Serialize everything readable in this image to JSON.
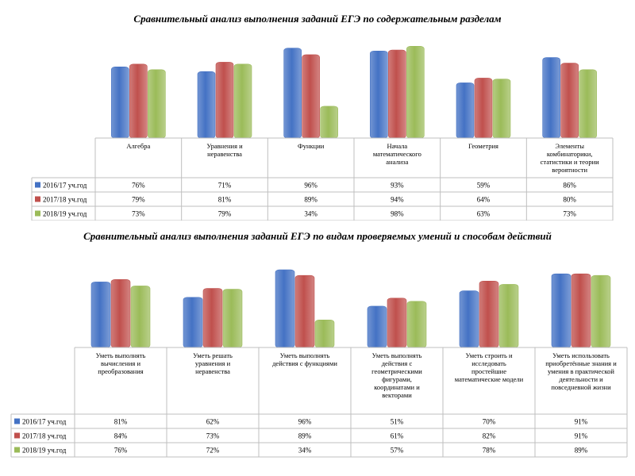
{
  "colors": {
    "s2016": "#4472c4",
    "s2017": "#c0504d",
    "s2018": "#9bbb59",
    "grid": "#bfbfbf"
  },
  "chart_data": [
    {
      "type": "bar",
      "title": "Сравнительный анализ выполнения заданий ЕГЭ по содержательным разделам",
      "ylim": [
        0,
        100
      ],
      "categories": [
        "Алгебра",
        "Уравнения и неравенства",
        "Функции",
        "Начала математического анализа",
        "Геометрия",
        "Элементы комбинаторики, статистики и теории вероятности"
      ],
      "category_lines": [
        [
          "Алгебра"
        ],
        [
          "Уравнения и",
          "неравенства"
        ],
        [
          "Функции"
        ],
        [
          "Начала",
          "математического",
          "анализа"
        ],
        [
          "Геометрия"
        ],
        [
          "Элементы",
          "комбинаторики,",
          "статистики и теории",
          "вероятности"
        ]
      ],
      "series": [
        {
          "name": "2016/17 уч.год",
          "values": [
            76,
            71,
            96,
            93,
            59,
            86
          ],
          "labels": [
            "76%",
            "71%",
            "96%",
            "93%",
            "59%",
            "86%"
          ]
        },
        {
          "name": "2017/18 уч.год",
          "values": [
            79,
            81,
            89,
            94,
            64,
            80
          ],
          "labels": [
            "79%",
            "81%",
            "89%",
            "94%",
            "64%",
            "80%"
          ]
        },
        {
          "name": "2018/19 уч.год",
          "values": [
            73,
            79,
            34,
            98,
            63,
            73
          ],
          "labels": [
            "73%",
            "79%",
            "34%",
            "98%",
            "63%",
            "73%"
          ]
        }
      ]
    },
    {
      "type": "bar",
      "title": "Сравнительный анализ выполнения заданий ЕГЭ по видам проверяемых умений и способам действий",
      "ylim": [
        0,
        100
      ],
      "categories": [
        "Уметь выполнять вычисления и преобразования",
        "Уметь решать уравнения и неравенства",
        "Уметь выполнять действия с функциями",
        "Уметь выполнять действия с геометрическими фигурами, координатами и векторами",
        "Уметь строить и исследовать простейшие математические модели",
        "Уметь использовать приобретённые знания и умения в практической деятельности и повседневной жизни"
      ],
      "category_lines": [
        [
          "Уметь выполнять",
          "вычисления и",
          "преобразования"
        ],
        [
          "Уметь решать",
          "уравнения и",
          "неравенства"
        ],
        [
          "Уметь выполнять",
          "действия с функциями"
        ],
        [
          "Уметь выполнять",
          "действия с",
          "геометрическими",
          "фигурами,",
          "координатами и",
          "векторами"
        ],
        [
          "Уметь строить и",
          "исследовать",
          "простейшие",
          "математические модели"
        ],
        [
          "Уметь использовать",
          "приобретённые знания и",
          "умения в практической",
          "деятельности и",
          "повседневной жизни"
        ]
      ],
      "series": [
        {
          "name": "2016/17 уч.год",
          "values": [
            81,
            62,
            96,
            51,
            70,
            91
          ],
          "labels": [
            "81%",
            "62%",
            "96%",
            "51%",
            "70%",
            "91%"
          ]
        },
        {
          "name": "2017/18 уч.год",
          "values": [
            84,
            73,
            89,
            61,
            82,
            91
          ],
          "labels": [
            "84%",
            "73%",
            "89%",
            "61%",
            "82%",
            "91%"
          ]
        },
        {
          "name": "2018/19 уч.год",
          "values": [
            76,
            72,
            34,
            57,
            78,
            89
          ],
          "labels": [
            "76%",
            "72%",
            "34%",
            "57%",
            "78%",
            "89%"
          ]
        }
      ]
    }
  ]
}
